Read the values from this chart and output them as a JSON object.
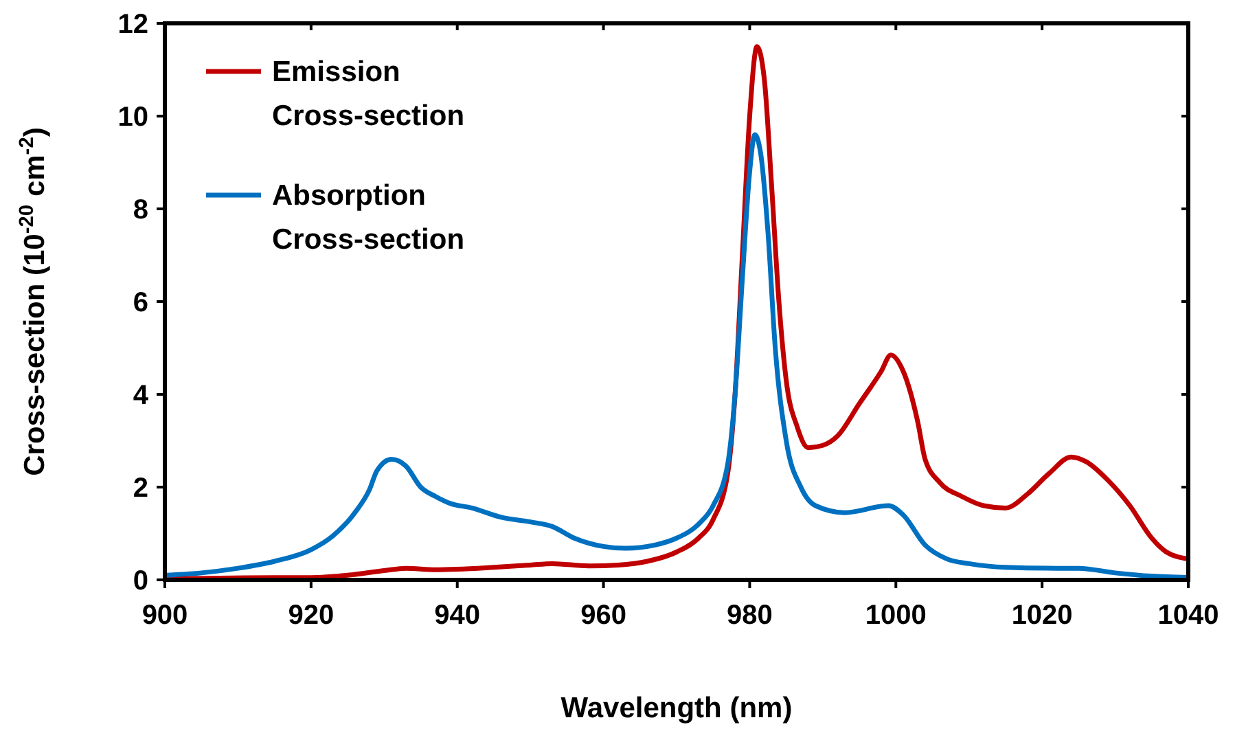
{
  "chart_data": {
    "type": "line",
    "xlabel": "Wavelength (nm)",
    "ylabel": "Cross-section (10$^{-20}$ cm$^{-2}$)",
    "xlim": [
      900,
      1040
    ],
    "xticks": [
      900,
      920,
      940,
      960,
      980,
      1000,
      1020,
      1040
    ],
    "ylim": [
      0,
      12
    ],
    "yticks": [
      0,
      2,
      4,
      6,
      8,
      10,
      12
    ],
    "grid": false,
    "legend": "top left",
    "marker": "none",
    "line_style": "solid",
    "series": [
      {
        "name": "Emission Cross-section",
        "color": "#c00000",
        "x": [
          900,
          915,
          920,
          925,
          930,
          933,
          937,
          945,
          950,
          953,
          958,
          962,
          966,
          970,
          973,
          975,
          977,
          978,
          979,
          980,
          981,
          982,
          983,
          984,
          985,
          986.5,
          988,
          990,
          992,
          995,
          998,
          999.3,
          1001,
          1003,
          1004,
          1006,
          1009,
          1012,
          1015,
          1018,
          1021,
          1024,
          1026,
          1029,
          1032,
          1035,
          1037,
          1040
        ],
        "values": [
          0.02,
          0.05,
          0.05,
          0.1,
          0.2,
          0.25,
          0.22,
          0.27,
          0.32,
          0.35,
          0.3,
          0.32,
          0.4,
          0.6,
          0.9,
          1.3,
          2.3,
          4.0,
          7.0,
          10.0,
          11.5,
          10.8,
          8.5,
          6.0,
          4.3,
          3.3,
          2.85,
          2.9,
          3.1,
          3.8,
          4.5,
          4.85,
          4.5,
          3.4,
          2.6,
          2.1,
          1.8,
          1.6,
          1.55,
          1.85,
          2.3,
          2.65,
          2.55,
          2.15,
          1.6,
          0.9,
          0.6,
          0.45
        ]
      },
      {
        "name": "Absorption Cross-section",
        "color": "#0070c0",
        "x": [
          900,
          905,
          910,
          915,
          920,
          923,
          926,
          928,
          929,
          931,
          933,
          935,
          937,
          939,
          942,
          946,
          950,
          953,
          956,
          960,
          963,
          967,
          970,
          973,
          975,
          977,
          978,
          979,
          980,
          980.7,
          981.5,
          982.5,
          983.5,
          985,
          987,
          989,
          993,
          999,
          1001,
          1004,
          1007,
          1010,
          1015,
          1022,
          1025,
          1030,
          1035,
          1040
        ],
        "values": [
          0.1,
          0.15,
          0.25,
          0.4,
          0.65,
          0.95,
          1.45,
          1.95,
          2.35,
          2.6,
          2.45,
          2.0,
          1.8,
          1.65,
          1.55,
          1.35,
          1.25,
          1.15,
          0.9,
          0.72,
          0.68,
          0.75,
          0.9,
          1.2,
          1.6,
          2.5,
          4.0,
          6.5,
          8.8,
          9.6,
          9.2,
          7.5,
          5.0,
          3.0,
          2.0,
          1.6,
          1.45,
          1.6,
          1.4,
          0.75,
          0.45,
          0.35,
          0.27,
          0.25,
          0.25,
          0.15,
          0.08,
          0.05
        ]
      }
    ]
  }
}
